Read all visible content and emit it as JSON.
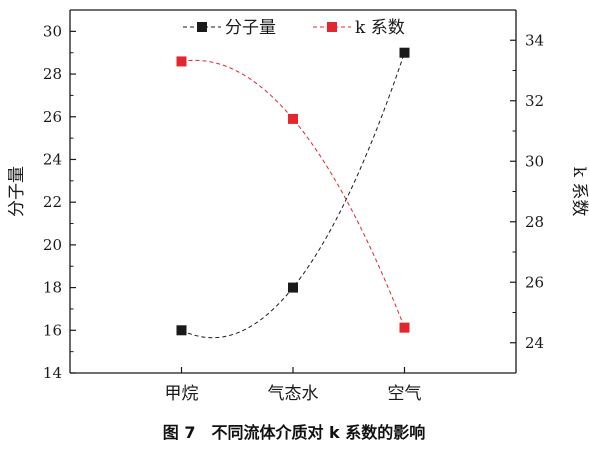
{
  "caption": "图 7　不同流体介质对 k 系数的影响",
  "colors": {
    "series1": "#1a1a1a",
    "series2": "#e0282e",
    "axis": "#1a1a1a",
    "background": "#ffffff"
  },
  "chart_data": {
    "type": "scatter",
    "categories": [
      "甲烷",
      "气态水",
      "空气"
    ],
    "x_axis": {
      "label": "",
      "tick_labels": [
        "甲烷",
        "气态水",
        "空气"
      ]
    },
    "y_axis_left": {
      "label": "分子量",
      "range": [
        14,
        31
      ],
      "ticks": [
        14,
        16,
        18,
        20,
        22,
        24,
        26,
        28,
        30
      ]
    },
    "y_axis_right": {
      "label": "k 系数",
      "range": [
        23,
        35
      ],
      "ticks": [
        24,
        26,
        28,
        30,
        32,
        34
      ]
    },
    "series": [
      {
        "name": "分子量",
        "axis": "left",
        "marker": "square",
        "color": "#1a1a1a",
        "values": [
          16.0,
          18.0,
          29.0
        ],
        "trend_line": "dashed, smooth fit"
      },
      {
        "name": "k 系数",
        "axis": "right",
        "marker": "square",
        "color": "#e0282e",
        "values": [
          33.3,
          31.4,
          24.5
        ],
        "trend_line": "dashed, smooth fit"
      }
    ],
    "legend": {
      "placement": "top-center",
      "entries": [
        "分子量",
        "k 系数"
      ]
    },
    "grid": false
  }
}
